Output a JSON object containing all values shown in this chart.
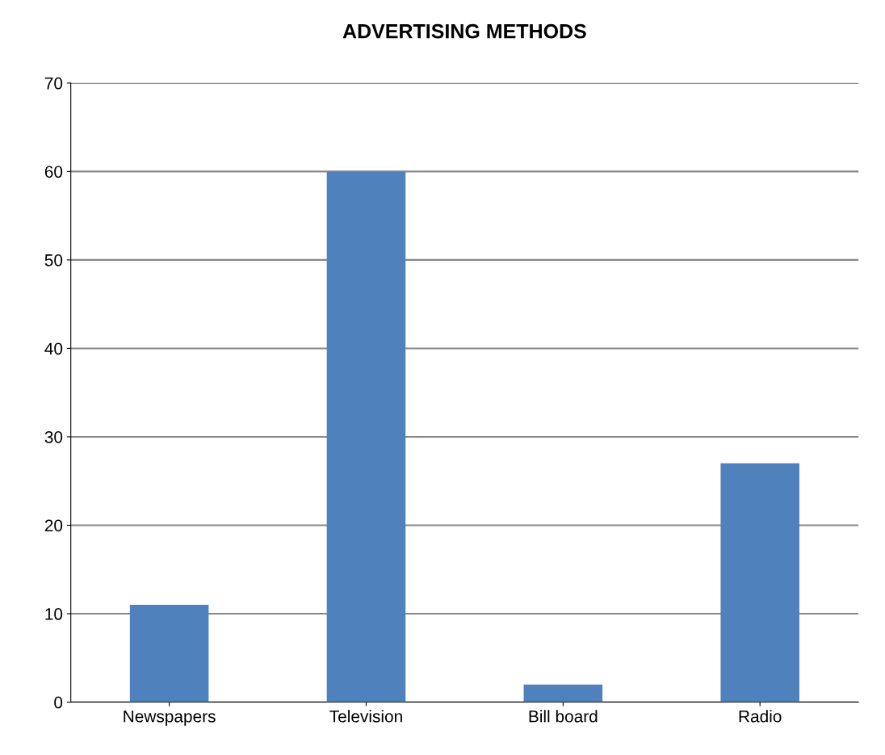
{
  "chart_data": {
    "type": "bar",
    "title": "ADVERTISING METHODS",
    "categories": [
      "Newspapers",
      "Television",
      "Bill board",
      "Radio"
    ],
    "values": [
      11,
      60,
      2,
      27
    ],
    "color": "#4f81bd",
    "ylim": [
      0,
      70
    ],
    "yticks": [
      0,
      10,
      20,
      30,
      40,
      50,
      60,
      70
    ],
    "grid": "y",
    "legend": false
  }
}
